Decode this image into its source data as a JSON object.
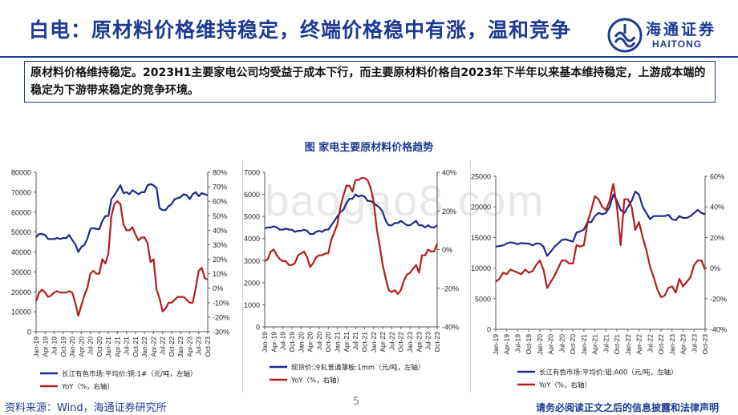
{
  "header": {
    "title": "白电：原材料价格维持稳定，终端价格稳中有涨，温和竞争",
    "logo_cn": "海通证券",
    "logo_en": "HAITONG",
    "brand_color": "#1f3a93"
  },
  "summary": "原材料价格维持稳定。2023H1主要家电公司均受益于成本下行，而主要原材料价格自2023年下半年以来基本维持稳定，上游成本端的稳定为下游带来稳定的竞争环境。",
  "figure_title": "图  家电主要原材料价格趋势",
  "watermark": "baogao8.com",
  "footer": {
    "source": "资料来源：Wind，海通证券研究所",
    "page": "5",
    "disclaimer": "请务必阅读正文之后的信息披露和法律声明"
  },
  "chart_data": [
    {
      "type": "line",
      "months": [
        "Jan-19",
        "Feb-19",
        "Mar-19",
        "Apr-19",
        "May-19",
        "Jun-19",
        "Jul-19",
        "Aug-19",
        "Sep-19",
        "Oct-19",
        "Nov-19",
        "Dec-19",
        "Jan-20",
        "Feb-20",
        "Mar-20",
        "Apr-20",
        "May-20",
        "Jun-20",
        "Jul-20",
        "Aug-20",
        "Sep-20",
        "Oct-20",
        "Nov-20",
        "Dec-20",
        "Jan-21",
        "Feb-21",
        "Mar-21",
        "Apr-21",
        "May-21",
        "Jun-21",
        "Jul-21",
        "Aug-21",
        "Sep-21",
        "Oct-21",
        "Nov-21",
        "Dec-21",
        "Jan-22",
        "Feb-22",
        "Mar-22",
        "Apr-22",
        "May-22",
        "Jun-22",
        "Jul-22",
        "Aug-22",
        "Sep-22",
        "Oct-22",
        "Nov-22",
        "Dec-22",
        "Jan-23",
        "Feb-23",
        "Mar-23",
        "Apr-23",
        "May-23",
        "Jun-23",
        "Jul-23",
        "Aug-23",
        "Sep-23",
        "Oct-23"
      ],
      "xticks": [
        "Jan-19",
        "Apr-19",
        "Jul-19",
        "Oct-19",
        "Jan-20",
        "Apr-20",
        "Jul-20",
        "Oct-20",
        "Jan-21",
        "Apr-21",
        "Jul-21",
        "Oct-21",
        "Jan-22",
        "Apr-22",
        "Jul-22",
        "Oct-22",
        "Jan-23",
        "Apr-23",
        "Jul-23",
        "Oct-23"
      ],
      "left_axis": {
        "min": 0,
        "max": 80000,
        "ticks": [
          0,
          10000,
          20000,
          30000,
          40000,
          50000,
          60000,
          70000,
          80000
        ],
        "labels": [
          "0",
          "10000",
          "20000",
          "30000",
          "40000",
          "50000",
          "60000",
          "70000",
          "80000"
        ]
      },
      "right_axis": {
        "min": -30,
        "max": 80,
        "ticks": [
          -30,
          -20,
          -10,
          0,
          10,
          20,
          30,
          40,
          50,
          60,
          70,
          80
        ],
        "labels": [
          "-30%",
          "-20%",
          "-10%",
          "0%",
          "10%",
          "20%",
          "30%",
          "40%",
          "50%",
          "60%",
          "70%",
          "80%"
        ]
      },
      "series": [
        {
          "name": "长江有色市场:平均价:铜:1#（元/吨，左轴）",
          "axis": "left",
          "color": "#1f2a8c",
          "values": [
            47500,
            49000,
            49000,
            48500,
            46500,
            46500,
            46500,
            47000,
            46500,
            47000,
            47000,
            48500,
            46000,
            44000,
            40000,
            42500,
            43500,
            46500,
            51500,
            52000,
            51500,
            51500,
            55500,
            58000,
            58000,
            66500,
            68500,
            71000,
            73500,
            69500,
            70000,
            69000,
            71000,
            70000,
            69000,
            70000,
            70000,
            73500,
            74000,
            73500,
            72000,
            62000,
            61000,
            61000,
            63000,
            64000,
            66500,
            67000,
            67500,
            69000,
            68500,
            66500,
            69000,
            70000,
            68000,
            69500,
            69000,
            68500
          ]
        },
        {
          "name": "YoY（%，右轴）",
          "axis": "right",
          "color": "#b21e1e",
          "values": [
            -9,
            -3,
            -1,
            -3,
            -6,
            -5,
            -3,
            -2,
            -3,
            -3,
            -3,
            -2,
            -3,
            -10,
            -19,
            -12,
            -5,
            0,
            10,
            12,
            10,
            10,
            20,
            17,
            24,
            50,
            58,
            60,
            58,
            44,
            40,
            40,
            42,
            37,
            33,
            35,
            35,
            31,
            18,
            20,
            -1,
            -7,
            -16,
            -14,
            -10,
            -10,
            -8,
            -6,
            -6,
            -6,
            -8,
            -10,
            -10,
            0,
            12,
            14,
            7,
            6
          ]
        }
      ]
    },
    {
      "type": "line",
      "months": [
        "Jan-19",
        "Feb-19",
        "Mar-19",
        "Apr-19",
        "May-19",
        "Jun-19",
        "Jul-19",
        "Aug-19",
        "Sep-19",
        "Oct-19",
        "Nov-19",
        "Dec-19",
        "Jan-20",
        "Feb-20",
        "Mar-20",
        "Apr-20",
        "May-20",
        "Jun-20",
        "Jul-20",
        "Aug-20",
        "Sep-20",
        "Oct-20",
        "Nov-20",
        "Dec-20",
        "Jan-21",
        "Feb-21",
        "Mar-21",
        "Apr-21",
        "May-21",
        "Jun-21",
        "Jul-21",
        "Aug-21",
        "Sep-21",
        "Oct-21",
        "Nov-21",
        "Dec-21",
        "Jan-22",
        "Feb-22",
        "Mar-22",
        "Apr-22",
        "May-22",
        "Jun-22",
        "Jul-22",
        "Aug-22",
        "Sep-22",
        "Oct-22",
        "Nov-22",
        "Dec-22",
        "Jan-23",
        "Feb-23",
        "Mar-23",
        "Apr-23",
        "May-23",
        "Jun-23",
        "Jul-23",
        "Aug-23",
        "Sep-23",
        "Oct-23"
      ],
      "xticks": [
        "Jan-19",
        "Apr-19",
        "Jul-19",
        "Oct-19",
        "Jan-20",
        "Apr-20",
        "Jul-20",
        "Oct-20",
        "Jan-21",
        "Apr-21",
        "Jul-21",
        "Oct-21",
        "Jan-22",
        "Apr-22",
        "Jul-22",
        "Oct-22",
        "Jan-23",
        "Apr-23",
        "Jul-23",
        "Oct-23"
      ],
      "left_axis": {
        "min": 0,
        "max": 7000,
        "ticks": [
          0,
          1000,
          2000,
          3000,
          4000,
          5000,
          6000,
          7000
        ],
        "labels": [
          "0",
          "1000",
          "2000",
          "3000",
          "4000",
          "5000",
          "6000",
          "7000"
        ]
      },
      "right_axis": {
        "min": -40,
        "max": 40,
        "ticks": [
          -40,
          -20,
          0,
          20,
          40
        ],
        "labels": [
          "-40%",
          "-20%",
          "0%",
          "20%",
          "40%"
        ]
      },
      "series": [
        {
          "name": "现货价:冷轧普通薄板:1mm（元/吨，左轴）",
          "axis": "left",
          "color": "#1f2a8c",
          "values": [
            4450,
            4500,
            4500,
            4550,
            4500,
            4400,
            4400,
            4450,
            4400,
            4400,
            4300,
            4350,
            4350,
            4400,
            4350,
            4200,
            4200,
            4300,
            4350,
            4300,
            4400,
            4400,
            4600,
            4800,
            5000,
            5200,
            5300,
            5600,
            5800,
            5800,
            6000,
            5900,
            5950,
            5900,
            5700,
            5700,
            5600,
            5500,
            5400,
            5200,
            4800,
            4600,
            4600,
            4700,
            4700,
            4800,
            4700,
            4600,
            4600,
            4700,
            4800,
            4600,
            4600,
            4500,
            4600,
            4500,
            4500,
            4600
          ]
        },
        {
          "name": "YoY（%，右轴）",
          "axis": "right",
          "color": "#b21e1e",
          "values": [
            -6,
            -5,
            -1,
            0,
            -3,
            -5,
            -6,
            -6,
            -8,
            -8,
            -7,
            -3,
            -2,
            -1,
            -4,
            -9,
            -7,
            -4,
            -3,
            -3,
            -2,
            -2,
            5,
            9,
            13,
            22,
            28,
            33,
            33,
            30,
            36,
            36,
            37,
            37,
            36,
            32,
            25,
            11,
            2,
            -8,
            -15,
            -21,
            -22,
            -21,
            -23,
            -21,
            -16,
            -13,
            -12,
            -10,
            -8,
            -12,
            -3,
            -3,
            0,
            -1,
            -1,
            3
          ]
        }
      ]
    },
    {
      "type": "line",
      "months": [
        "Jan-19",
        "Feb-19",
        "Mar-19",
        "Apr-19",
        "May-19",
        "Jun-19",
        "Jul-19",
        "Aug-19",
        "Sep-19",
        "Oct-19",
        "Nov-19",
        "Dec-19",
        "Jan-20",
        "Feb-20",
        "Mar-20",
        "Apr-20",
        "May-20",
        "Jun-20",
        "Jul-20",
        "Aug-20",
        "Sep-20",
        "Oct-20",
        "Nov-20",
        "Dec-20",
        "Jan-21",
        "Feb-21",
        "Mar-21",
        "Apr-21",
        "May-21",
        "Jun-21",
        "Jul-21",
        "Aug-21",
        "Sep-21",
        "Oct-21",
        "Nov-21",
        "Dec-21",
        "Jan-22",
        "Feb-22",
        "Mar-22",
        "Apr-22",
        "May-22",
        "Jun-22",
        "Jul-22",
        "Aug-22",
        "Sep-22",
        "Oct-22",
        "Nov-22",
        "Dec-22",
        "Jan-23",
        "Feb-23",
        "Mar-23",
        "Apr-23",
        "May-23",
        "Jun-23",
        "Jul-23",
        "Aug-23",
        "Sep-23",
        "Oct-23"
      ],
      "xticks": [
        "Jan-19",
        "Apr-19",
        "Jul-19",
        "Oct-19",
        "Jan-20",
        "Apr-20",
        "Jul-20",
        "Oct-20",
        "Jan-21",
        "Apr-21",
        "Jul-21",
        "Oct-21",
        "Jan-22",
        "Apr-22",
        "Jul-22",
        "Oct-22",
        "Jan-23",
        "Apr-23",
        "Jul-23",
        "Oct-23"
      ],
      "left_axis": {
        "min": 0,
        "max": 25000,
        "ticks": [
          0,
          5000,
          10000,
          15000,
          20000,
          25000
        ],
        "labels": [
          "0",
          "5000",
          "10000",
          "15000",
          "20000",
          "25000"
        ]
      },
      "right_axis": {
        "min": -40,
        "max": 60,
        "ticks": [
          -40,
          -20,
          0,
          20,
          40,
          60
        ],
        "labels": [
          "-40%",
          "-20%",
          "0%",
          "20%",
          "40%",
          "60%"
        ]
      },
      "series": [
        {
          "name": "长江有色市场:平均价:铝:A00（元/吨，左轴）",
          "axis": "left",
          "color": "#1f2a8c",
          "values": [
            13500,
            13600,
            13700,
            14000,
            14200,
            14100,
            13900,
            14100,
            14000,
            14000,
            13700,
            14000,
            14000,
            13500,
            12000,
            12700,
            13500,
            14000,
            14600,
            14700,
            14500,
            14300,
            15800,
            16000,
            16300,
            17500,
            17500,
            18500,
            19000,
            18800,
            19000,
            20000,
            22000,
            21000,
            19500,
            19000,
            20000,
            21000,
            22500,
            22000,
            20000,
            19000,
            18000,
            18500,
            18500,
            18500,
            18500,
            18700,
            18000,
            17800,
            18500,
            18200,
            18200,
            18500,
            19000,
            19500,
            19000,
            18800
          ]
        },
        {
          "name": "YoY（%，右轴）",
          "axis": "right",
          "color": "#b21e1e",
          "values": [
            -9,
            -7,
            -3,
            -4,
            -1,
            -2,
            -3,
            -4,
            -1,
            -3,
            -2,
            2,
            5,
            -1,
            -13,
            -9,
            -5,
            0,
            5,
            5,
            3,
            3,
            15,
            14,
            15,
            30,
            38,
            47,
            45,
            40,
            38,
            44,
            55,
            40,
            15,
            45,
            45,
            40,
            25,
            30,
            20,
            12,
            1,
            -6,
            -14,
            -19,
            -18,
            -13,
            -12,
            -16,
            -7,
            -12,
            -9,
            -6,
            2,
            5,
            5,
            -1
          ]
        }
      ]
    }
  ]
}
